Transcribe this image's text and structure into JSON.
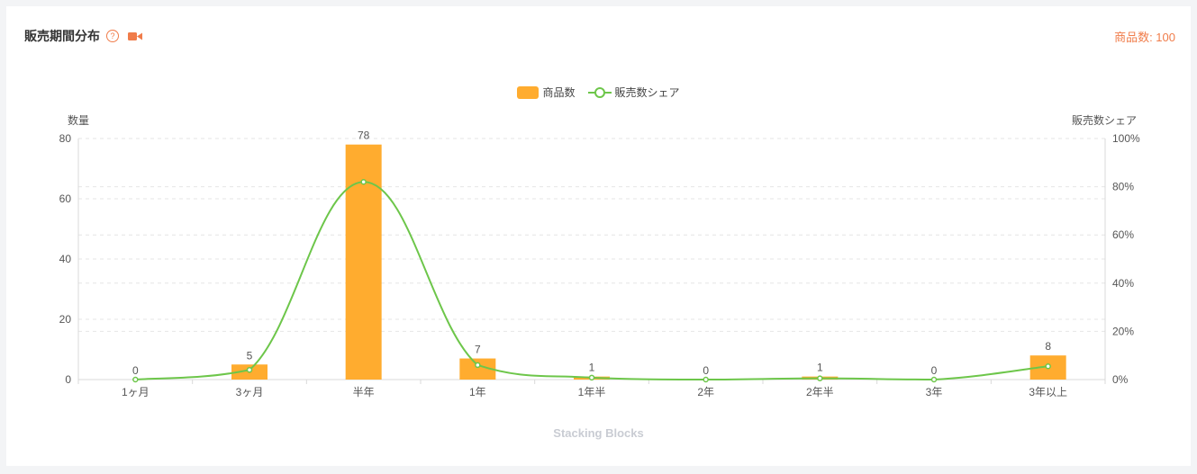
{
  "header": {
    "title": "販売期間分布",
    "count_label": "商品数: 100"
  },
  "icons": {
    "help": "question-circle-icon",
    "video": "video-camera-icon"
  },
  "colors": {
    "bar": "#ffac2f",
    "line": "#6dc64a",
    "accent": "#f07c4a"
  },
  "legend": {
    "bar_label": "商品数",
    "line_label": "販売数シェア"
  },
  "footer": "Stacking Blocks",
  "chart_data": {
    "type": "bar",
    "categories": [
      "1ヶ月",
      "3ヶ月",
      "半年",
      "1年",
      "1年半",
      "2年",
      "2年半",
      "3年",
      "3年以上"
    ],
    "series": [
      {
        "name": "商品数",
        "type": "bar",
        "axis": "left",
        "values": [
          0,
          5,
          78,
          7,
          1,
          0,
          1,
          0,
          8
        ]
      },
      {
        "name": "販売数シェア",
        "type": "line",
        "axis": "right",
        "smooth": true,
        "values": [
          0,
          4,
          82,
          6,
          0.8,
          0,
          0.5,
          0,
          5.5
        ]
      }
    ],
    "ylabel_left": "数量",
    "ylabel_right": "販売数シェア",
    "ylim_left": [
      0,
      80
    ],
    "ylim_right": [
      0,
      100
    ],
    "yticks_left": [
      "0",
      "20",
      "40",
      "60",
      "80"
    ],
    "yticks_right": [
      "0%",
      "20%",
      "40%",
      "60%",
      "80%",
      "100%"
    ],
    "grid": true,
    "legend_position": "top-center"
  }
}
